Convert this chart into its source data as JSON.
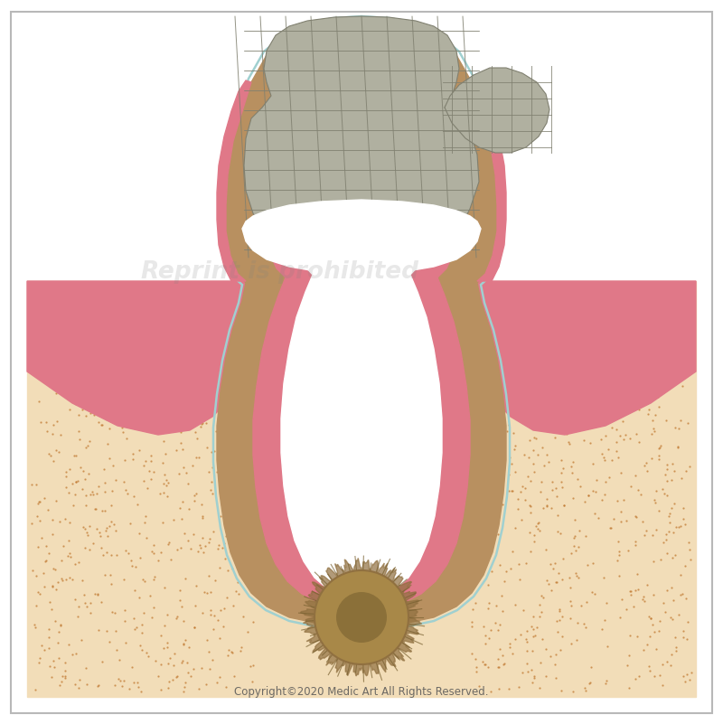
{
  "bg_color": "#ffffff",
  "border_color": "#b8b8b8",
  "bone_color": "#f2ddb8",
  "bone_dot_color": "#c07830",
  "gum_outer_color": "#e07888",
  "gum_inner_color": "#e8909a",
  "dentin_color": "#b89060",
  "dentin_dark": "#9a7848",
  "pulp_pink_color": "#e07888",
  "pulp_white_color": "#ffffff",
  "enamel_ghost_color": "#a0d0d0",
  "caries_fill_color": "#b0b0a0",
  "caries_line_color": "#808070",
  "white_band_color": "#ffffff",
  "abscess_outer_color": "#907040",
  "abscess_inner_color": "#786030",
  "abscess_bg_color": "#a88848",
  "copyright_text": "Copyright©2020 Medic Art All Rights Reserved.",
  "watermark_text": "Reprint is prohibited"
}
